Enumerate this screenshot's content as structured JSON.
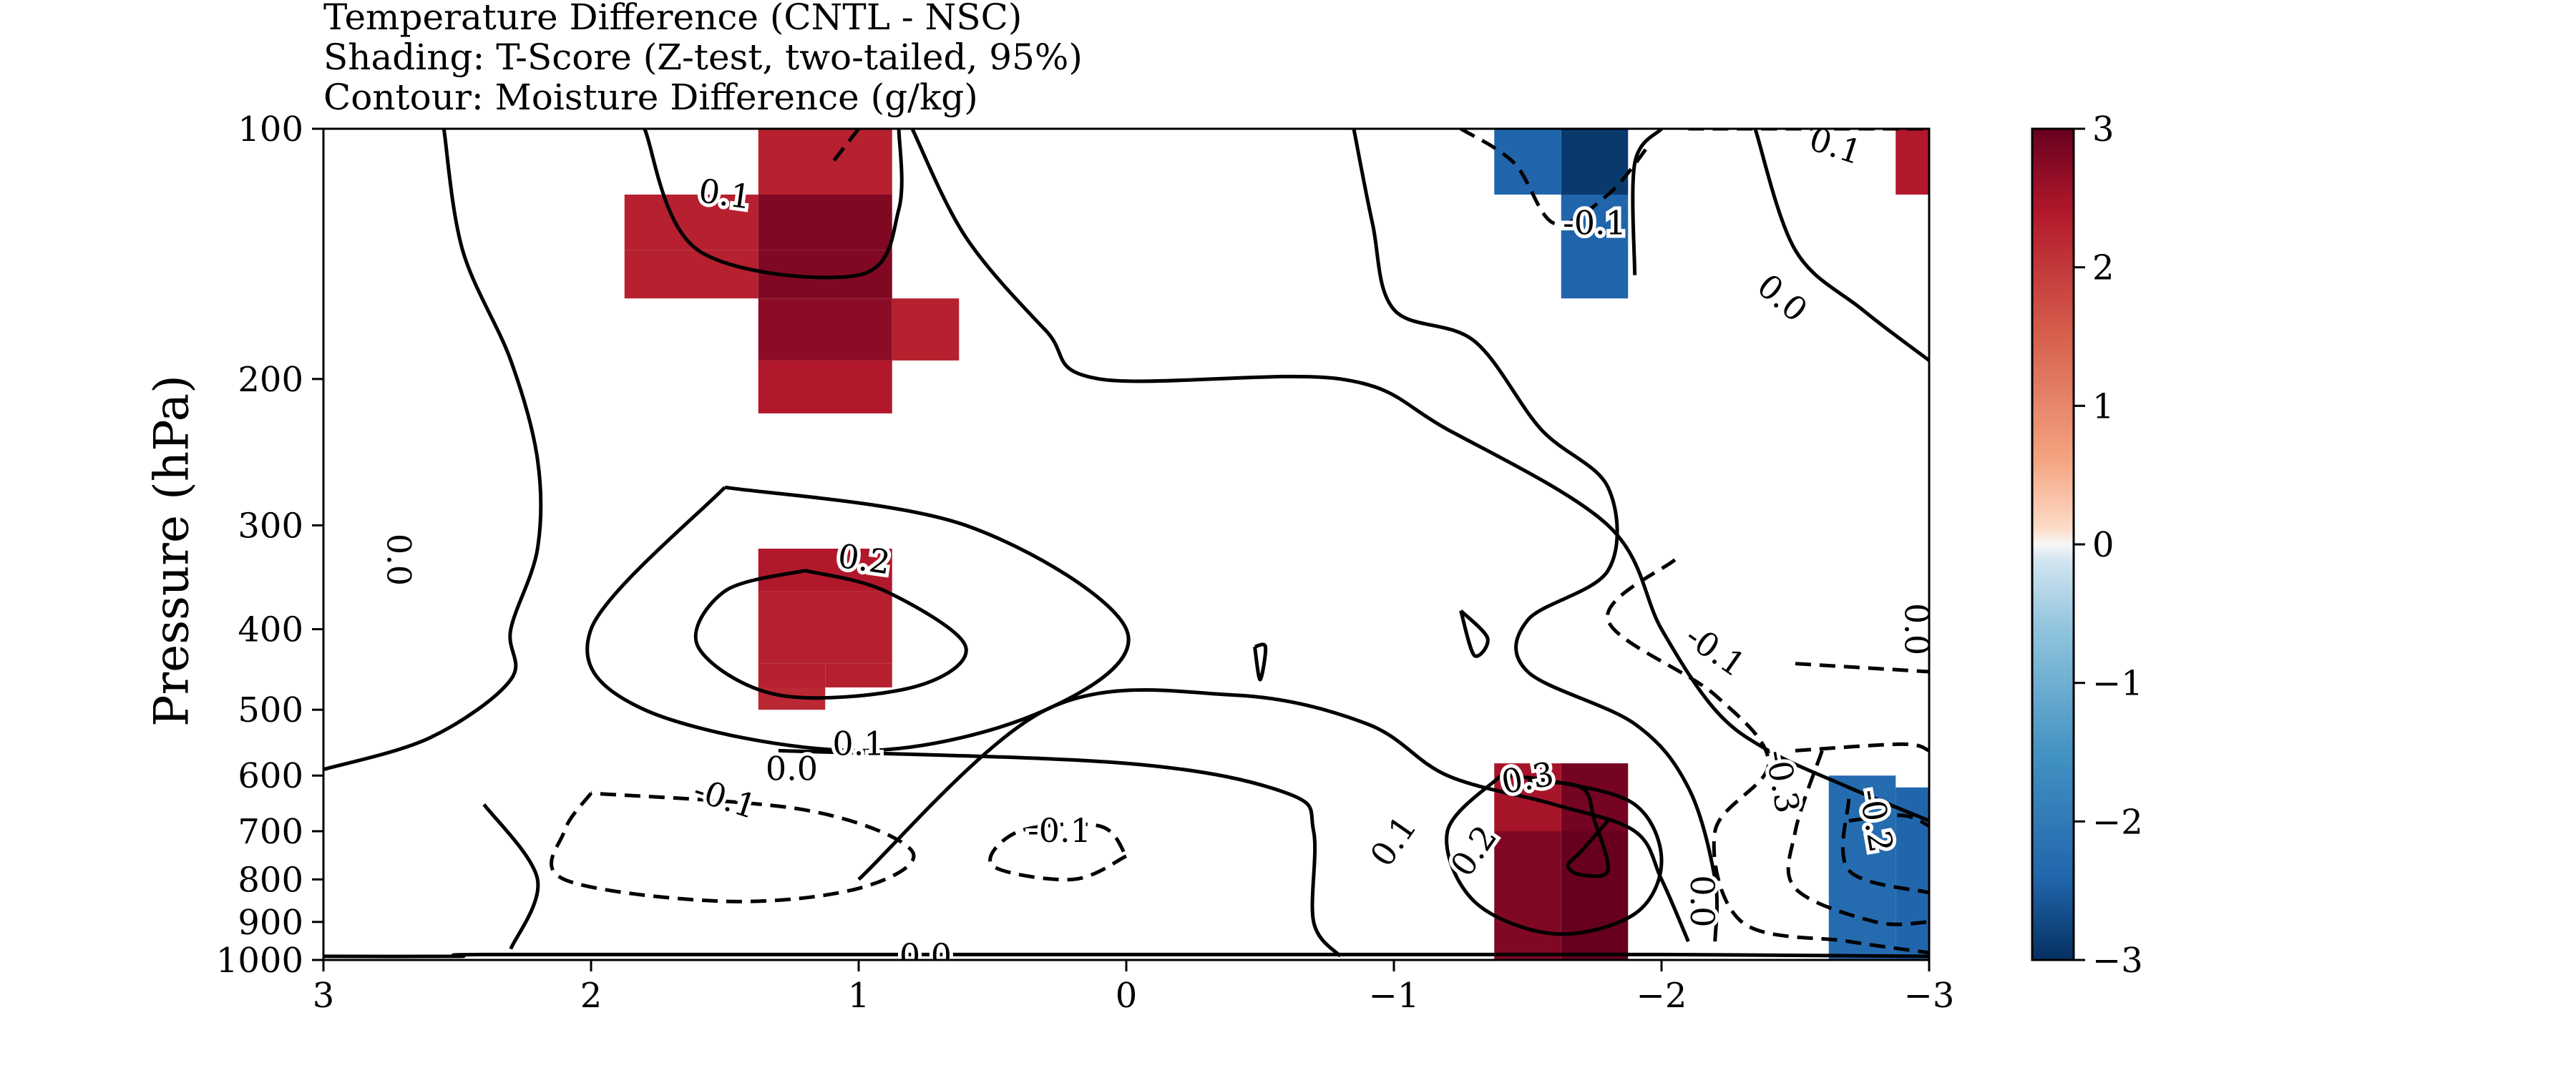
{
  "chart_data": {
    "type": "heatmap",
    "title": [
      "Temperature Difference (CNTL - NSC)",
      "Shading: T-Score (Z-test, two-tailed, 95%)",
      "Contour: Moisture Difference (g/kg)"
    ],
    "xlabel": "",
    "ylabel": "Pressure (hPa)",
    "x_ticks": [
      "3",
      "2",
      "1",
      "0",
      "−1",
      "−2",
      "−3"
    ],
    "x_tick_values": [
      3,
      2,
      1,
      0,
      -1,
      -2,
      -3
    ],
    "xlim": [
      3,
      -3
    ],
    "y_ticks": [
      "100",
      "200",
      "300",
      "400",
      "500",
      "600",
      "700",
      "800",
      "900",
      "1000"
    ],
    "y_tick_values": [
      100,
      200,
      300,
      400,
      500,
      600,
      700,
      800,
      900,
      1000
    ],
    "ylim": [
      1000,
      100
    ],
    "y_scale": "log",
    "colorbar": {
      "ticks": [
        "3",
        "2",
        "1",
        "0",
        "−1",
        "−2",
        "−3"
      ],
      "tick_values": [
        3,
        2,
        1,
        0,
        -1,
        -2,
        -3
      ],
      "range": [
        -3,
        3
      ],
      "colormap": "RdBu_r",
      "placement": "right"
    },
    "shading_cells": [
      {
        "x": [
          1.375,
          0.875
        ],
        "p": [
          100,
          120
        ],
        "t": 2.3
      },
      {
        "x": [
          1.875,
          1.375
        ],
        "p": [
          120,
          140
        ],
        "t": 2.3
      },
      {
        "x": [
          1.375,
          0.875
        ],
        "p": [
          120,
          140
        ],
        "t": 2.8
      },
      {
        "x": [
          1.875,
          1.375
        ],
        "p": [
          140,
          160
        ],
        "t": 2.3
      },
      {
        "x": [
          1.375,
          0.875
        ],
        "p": [
          140,
          160
        ],
        "t": 2.8
      },
      {
        "x": [
          1.375,
          0.875
        ],
        "p": [
          160,
          190
        ],
        "t": 2.7
      },
      {
        "x": [
          0.875,
          0.625
        ],
        "p": [
          160,
          190
        ],
        "t": 2.3
      },
      {
        "x": [
          1.375,
          0.875
        ],
        "p": [
          190,
          220
        ],
        "t": 2.4
      },
      {
        "x": [
          1.375,
          0.875
        ],
        "p": [
          320,
          360
        ],
        "t": 2.4
      },
      {
        "x": [
          1.375,
          0.875
        ],
        "p": [
          360,
          440
        ],
        "t": 2.3
      },
      {
        "x": [
          1.125,
          0.875
        ],
        "p": [
          440,
          470
        ],
        "t": 2.3
      },
      {
        "x": [
          1.375,
          1.125
        ],
        "p": [
          440,
          470
        ],
        "t": 2.3
      },
      {
        "x": [
          1.375,
          1.125
        ],
        "p": [
          470,
          500
        ],
        "t": 2.2
      },
      {
        "x": [
          -1.375,
          -1.625
        ],
        "p": [
          100,
          120
        ],
        "t": -2.4
      },
      {
        "x": [
          -1.625,
          -1.875
        ],
        "p": [
          100,
          120
        ],
        "t": -2.9
      },
      {
        "x": [
          -1.625,
          -1.875
        ],
        "p": [
          120,
          160
        ],
        "t": -2.4
      },
      {
        "x": [
          3.0,
          2.875
        ],
        "p": [
          100,
          120
        ],
        "t": 0
      },
      {
        "x": [
          -2.875,
          -3.0
        ],
        "p": [
          100,
          120
        ],
        "t": 2.4
      },
      {
        "x": [
          -1.375,
          -1.625
        ],
        "p": [
          580,
          700
        ],
        "t": 2.5
      },
      {
        "x": [
          -1.625,
          -1.875
        ],
        "p": [
          580,
          700
        ],
        "t": 2.9
      },
      {
        "x": [
          -1.375,
          -1.625
        ],
        "p": [
          700,
          1000
        ],
        "t": 2.8
      },
      {
        "x": [
          -1.625,
          -1.875
        ],
        "p": [
          700,
          1000
        ],
        "t": 3.0
      },
      {
        "x": [
          -2.625,
          -2.875
        ],
        "p": [
          600,
          1000
        ],
        "t": -2.3
      },
      {
        "x": [
          -2.875,
          -3.0
        ],
        "p": [
          620,
          1000
        ],
        "t": -2.4
      }
    ],
    "contours": {
      "solid": [
        {
          "label": "0.0",
          "points": [
            [
              2.55,
              100
            ],
            [
              2.48,
              140
            ],
            [
              2.3,
              190
            ],
            [
              2.2,
              250
            ],
            [
              2.2,
              320
            ],
            [
              2.3,
              400
            ],
            [
              2.3,
              460
            ],
            [
              2.6,
              540
            ],
            [
              3.0,
              590
            ]
          ]
        },
        {
          "label": "0.1",
          "points": [
            [
              1.8,
              100
            ],
            [
              1.6,
              140
            ],
            [
              1.0,
              150
            ],
            [
              0.85,
              125
            ],
            [
              0.85,
              100
            ]
          ]
        },
        {
          "label": "0.0",
          "points": [
            [
              0.8,
              100
            ],
            [
              0.6,
              135
            ],
            [
              0.3,
              175
            ],
            [
              0.1,
              200
            ],
            [
              -0.8,
              200
            ],
            [
              -1.2,
              230
            ],
            [
              -1.8,
              300
            ],
            [
              -2.0,
              400
            ],
            [
              -2.2,
              500
            ],
            [
              -2.4,
              560
            ],
            [
              -2.7,
              620
            ],
            [
              -3.0,
              680
            ]
          ]
        },
        {
          "label": "0.0",
          "points": [
            [
              -0.85,
              100
            ],
            [
              -0.92,
              130
            ],
            [
              -1.0,
              165
            ],
            [
              -1.3,
              180
            ],
            [
              -1.55,
              230
            ],
            [
              -1.8,
              270
            ],
            [
              -1.8,
              340
            ],
            [
              -1.5,
              390
            ],
            [
              -1.5,
              450
            ],
            [
              -1.9,
              520
            ],
            [
              -2.1,
              620
            ],
            [
              -2.2,
              800
            ],
            [
              -2.2,
              950
            ]
          ]
        },
        {
          "label": "0.0",
          "points": [
            [
              -2.35,
              100
            ],
            [
              -2.5,
              140
            ],
            [
              -2.75,
              165
            ],
            [
              -3.0,
              190
            ]
          ]
        },
        {
          "label": "0.0",
          "points": [
            [
              -2.0,
              100
            ],
            [
              -1.9,
              110
            ],
            [
              -1.9,
              150
            ]
          ]
        },
        {
          "label": "0.1",
          "points": [
            [
              1.0,
              800
            ],
            [
              0.3,
              500
            ],
            [
              -0.4,
              480
            ],
            [
              -0.9,
              520
            ],
            [
              -1.2,
              600
            ],
            [
              -1.6,
              650
            ],
            [
              -1.9,
              700
            ],
            [
              -2.0,
              800
            ],
            [
              -2.1,
              950
            ]
          ]
        },
        {
          "label": "0.1",
          "points": [
            [
              1.5,
              270
            ],
            [
              0.6,
              300
            ],
            [
              0.0,
              400
            ],
            [
              0.3,
              500
            ],
            [
              1.0,
              560
            ],
            [
              1.8,
              500
            ],
            [
              2.0,
              400
            ],
            [
              1.5,
              270
            ]
          ]
        },
        {
          "label": "0.0",
          "points": [
            [
              1.3,
              560
            ],
            [
              0.0,
              580
            ],
            [
              -0.6,
              630
            ],
            [
              -0.7,
              700
            ],
            [
              -0.7,
              900
            ],
            [
              -0.8,
              990
            ]
          ]
        },
        {
          "label": "0.0",
          "points": [
            [
              2.4,
              650
            ],
            [
              2.2,
              800
            ],
            [
              2.3,
              970
            ]
          ]
        },
        {
          "label": "0.0",
          "points": [
            [
              3.0,
              990
            ],
            [
              2.5,
              990
            ],
            [
              2.4,
              985
            ],
            [
              1.0,
              985
            ],
            [
              -0.6,
              985
            ],
            [
              -2.0,
              985
            ],
            [
              -3.0,
              990
            ]
          ]
        },
        {
          "label": "0.2",
          "points": [
            [
              1.2,
              340
            ],
            [
              0.9,
              360
            ],
            [
              0.6,
              420
            ],
            [
              0.8,
              470
            ],
            [
              1.3,
              480
            ],
            [
              1.6,
              420
            ],
            [
              1.5,
              360
            ],
            [
              1.2,
              340
            ]
          ]
        },
        {
          "label": "0.2",
          "points": [
            [
              -1.4,
              600
            ],
            [
              -1.2,
              700
            ],
            [
              -1.3,
              850
            ],
            [
              -1.6,
              930
            ],
            [
              -1.9,
              880
            ],
            [
              -2.0,
              760
            ],
            [
              -1.9,
              650
            ],
            [
              -1.6,
              610
            ],
            [
              -1.4,
              600
            ]
          ]
        },
        {
          "label": "0.3",
          "points": [
            [
              -1.5,
              610
            ],
            [
              -1.7,
              620
            ],
            [
              -1.75,
              680
            ],
            [
              -1.8,
              780
            ],
            [
              -1.7,
              790
            ],
            [
              -1.65,
              770
            ],
            [
              -1.7,
              740
            ],
            [
              -1.8,
              680
            ]
          ]
        },
        {
          "label": "",
          "points": [
            [
              -1.25,
              380
            ],
            [
              -1.35,
              410
            ],
            [
              -1.3,
              430
            ],
            [
              -1.25,
              380
            ]
          ]
        },
        {
          "label": "",
          "points": [
            [
              -0.48,
              420
            ],
            [
              -0.5,
              460
            ],
            [
              -0.52,
              420
            ],
            [
              -0.48,
              420
            ]
          ]
        }
      ],
      "dashed": [
        {
          "label": "-0.1",
          "points": [
            [
              1.0,
              100
            ],
            [
              1.1,
              110
            ]
          ]
        },
        {
          "label": "-0.1",
          "points": [
            [
              -1.25,
              100
            ],
            [
              -1.45,
              110
            ],
            [
              -1.6,
              130
            ],
            [
              -1.8,
              120
            ],
            [
              -1.95,
              105
            ]
          ]
        },
        {
          "label": "-0.1",
          "points": [
            [
              2.0,
              630
            ],
            [
              2.1,
              700
            ],
            [
              2.1,
              800
            ],
            [
              1.5,
              850
            ],
            [
              1.0,
              820
            ],
            [
              0.8,
              740
            ],
            [
              1.2,
              660
            ],
            [
              2.0,
              630
            ]
          ]
        },
        {
          "label": "-0.1",
          "points": [
            [
              0.0,
              750
            ],
            [
              0.2,
              800
            ],
            [
              0.5,
              770
            ],
            [
              0.4,
              700
            ],
            [
              0.1,
              690
            ],
            [
              0.0,
              750
            ]
          ]
        },
        {
          "label": "-0.1",
          "points": [
            [
              -2.05,
              330
            ],
            [
              -1.8,
              390
            ],
            [
              -2.2,
              480
            ],
            [
              -2.4,
              580
            ],
            [
              -2.2,
              700
            ],
            [
              -2.3,
              900
            ],
            [
              -2.7,
              950
            ],
            [
              -3.0,
              980
            ]
          ]
        },
        {
          "label": "-0.1",
          "points": [
            [
              -2.1,
              100
            ],
            [
              -2.6,
              100
            ],
            [
              -3.0,
              100
            ]
          ]
        },
        {
          "label": "-0.1",
          "points": [
            [
              -2.5,
              440
            ],
            [
              -3.0,
              450
            ]
          ]
        },
        {
          "label": "-0.3",
          "points": [
            [
              -2.6,
              560
            ],
            [
              -2.5,
              700
            ],
            [
              -2.5,
              820
            ],
            [
              -2.8,
              900
            ],
            [
              -3.0,
              900
            ]
          ]
        },
        {
          "label": "-0.2",
          "points": [
            [
              -2.7,
              640
            ],
            [
              -2.7,
              780
            ],
            [
              -3.0,
              830
            ]
          ]
        },
        {
          "label": "",
          "points": [
            [
              -2.5,
              560
            ],
            [
              -2.9,
              550
            ],
            [
              -3.0,
              560
            ]
          ]
        },
        {
          "label": "",
          "points": [
            [
              -2.7,
              680
            ],
            [
              -2.9,
              670
            ],
            [
              -3.0,
              690
            ]
          ]
        }
      ]
    },
    "contour_labels": [
      {
        "text": "0.0",
        "x": 2.72,
        "p": 330,
        "rotate": 90
      },
      {
        "text": "0.1",
        "x": 1.5,
        "p": 120,
        "rotate": 8
      },
      {
        "text": "0.2",
        "x": 0.98,
        "p": 330,
        "rotate": 8
      },
      {
        "text": "0.1",
        "x": 1.0,
        "p": 550,
        "rotate": 0
      },
      {
        "text": "0.0",
        "x": 1.25,
        "p": 590,
        "rotate": 0
      },
      {
        "text": "-0.1",
        "x": 1.5,
        "p": 640,
        "rotate": 18
      },
      {
        "text": "-0.1",
        "x": 0.25,
        "p": 700,
        "rotate": 0
      },
      {
        "text": "0.0",
        "x": 0.75,
        "p": 990,
        "rotate": 0
      },
      {
        "text": "0.1",
        "x": -1.0,
        "p": 720,
        "rotate": -55
      },
      {
        "text": "0.2",
        "x": -1.3,
        "p": 740,
        "rotate": -55
      },
      {
        "text": "0.3",
        "x": -1.5,
        "p": 605,
        "rotate": -10
      },
      {
        "text": "-0.1",
        "x": -1.75,
        "p": 130,
        "rotate": 0
      },
      {
        "text": "0.0",
        "x": -2.45,
        "p": 160,
        "rotate": 40
      },
      {
        "text": "0.1",
        "x": -2.65,
        "p": 105,
        "rotate": 18
      },
      {
        "text": "-0.1",
        "x": -2.2,
        "p": 425,
        "rotate": 35
      },
      {
        "text": "0.0",
        "x": -2.95,
        "p": 400,
        "rotate": 90
      },
      {
        "text": "-0.3",
        "x": -2.45,
        "p": 610,
        "rotate": 80
      },
      {
        "text": "-0.2",
        "x": -2.8,
        "p": 680,
        "rotate": 80
      },
      {
        "text": "0.0",
        "x": -2.15,
        "p": 850,
        "rotate": 90
      }
    ]
  }
}
